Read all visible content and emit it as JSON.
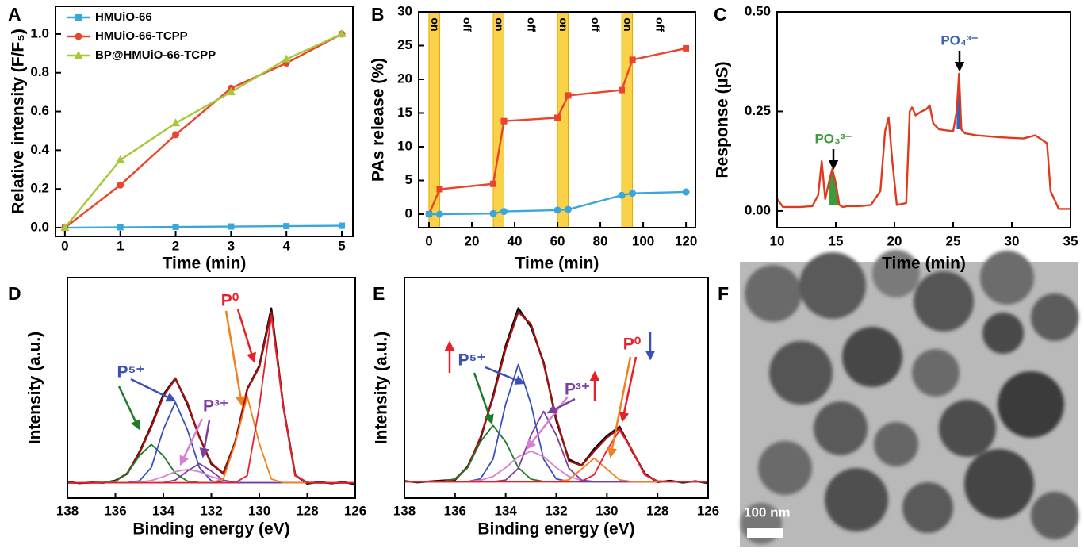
{
  "chart_data": [
    {
      "panel": "A",
      "type": "line",
      "xlabel": "Time (min)",
      "ylabel": "Relative intensity (F/F₅)",
      "x": [
        0,
        1,
        2,
        3,
        4,
        5
      ],
      "xlim": [
        -0.17,
        5.2
      ],
      "xticks": [
        0,
        1,
        2,
        3,
        4,
        5
      ],
      "ylim": [
        -0.045,
        1.143
      ],
      "yticks": [
        {
          "value": 0,
          "label": "0.0"
        },
        0.2,
        0.4,
        0.6,
        0.8,
        {
          "value": 1,
          "label": "1.0"
        }
      ],
      "series": [
        {
          "name": "HMUiO-66",
          "color": "#3aa7dc",
          "marker": "square",
          "values": [
            0,
            0.002,
            0.004,
            0.006,
            0.008,
            0.01
          ]
        },
        {
          "name": "HMUiO-66-TCPP",
          "color": "#e8452c",
          "marker": "circle",
          "values": [
            0,
            0.22,
            0.48,
            0.72,
            0.85,
            1.0
          ]
        },
        {
          "name": "BP@HMUiO-66-TCPP",
          "color": "#a6c93a",
          "marker": "triangle",
          "values": [
            0,
            0.35,
            0.54,
            0.7,
            0.87,
            1.0
          ]
        }
      ]
    },
    {
      "panel": "B",
      "type": "line",
      "xlabel": "Time (min)",
      "ylabel": "PAs release (%)",
      "x": [
        0,
        5,
        30,
        35,
        60,
        65,
        90,
        95,
        120
      ],
      "xlim": [
        -4.8,
        124.4
      ],
      "xticks": [
        0,
        20,
        40,
        60,
        80,
        100,
        120
      ],
      "ylim": [
        -2,
        30
      ],
      "yticks": [
        0,
        5,
        10,
        15,
        20,
        25,
        30
      ],
      "band_color": "#f9d24a",
      "intervals": [
        {
          "label": "on",
          "range": [
            0,
            5
          ],
          "shaded": true
        },
        {
          "label": "off",
          "range": [
            5,
            30
          ],
          "shaded": false
        },
        {
          "label": "on",
          "range": [
            30,
            35
          ],
          "shaded": true
        },
        {
          "label": "off",
          "range": [
            35,
            60
          ],
          "shaded": false
        },
        {
          "label": "on",
          "range": [
            60,
            65
          ],
          "shaded": true
        },
        {
          "label": "off",
          "range": [
            65,
            90
          ],
          "shaded": false
        },
        {
          "label": "on",
          "range": [
            90,
            95
          ],
          "shaded": true
        },
        {
          "label": "off",
          "range": [
            95,
            120
          ],
          "shaded": false
        }
      ],
      "series": [
        {
          "color": "#e8452c",
          "marker": "square",
          "values": [
            0,
            3.7,
            4.5,
            13.8,
            14.3,
            17.6,
            18.4,
            22.9,
            24.6
          ]
        },
        {
          "color": "#3aa7dc",
          "marker": "circle",
          "values": [
            0,
            0,
            0.1,
            0.4,
            0.6,
            0.7,
            2.8,
            3.1,
            3.3
          ]
        }
      ]
    },
    {
      "panel": "C",
      "type": "line",
      "xlabel": "Time (min)",
      "ylabel": "Response (μS)",
      "x": [
        10,
        10.5,
        11,
        12,
        13,
        13.5,
        13.8,
        14.1,
        14.4,
        14.7,
        15,
        15.3,
        15.6,
        16,
        17,
        18,
        18.8,
        19.2,
        19.5,
        19.8,
        20.2,
        21,
        21.3,
        21.5,
        21.8,
        22.3,
        22.7,
        23,
        23.3,
        23.8,
        25,
        25.3,
        25.5,
        25.7,
        26,
        27,
        29,
        31,
        32,
        32.5,
        33,
        33.3,
        34,
        35
      ],
      "xlim": [
        10,
        35
      ],
      "xticks": [
        10,
        15,
        20,
        25,
        30,
        35
      ],
      "ylim": [
        -0.042,
        0.5
      ],
      "yticks": [
        {
          "value": 0,
          "label": "0.00"
        },
        0.25,
        {
          "value": 0.5,
          "label": "0.50"
        }
      ],
      "series": [
        {
          "color": "#e03a1e",
          "values": [
            0.03,
            0.01,
            0.01,
            0.01,
            0.012,
            0.04,
            0.125,
            0.03,
            0.07,
            0.105,
            0.07,
            0.015,
            0.01,
            0.012,
            0.012,
            0.015,
            0.05,
            0.2,
            0.235,
            0.13,
            0.015,
            0.02,
            0.25,
            0.26,
            0.24,
            0.25,
            0.255,
            0.265,
            0.22,
            0.205,
            0.2,
            0.25,
            0.345,
            0.205,
            0.195,
            0.19,
            0.185,
            0.182,
            0.19,
            0.18,
            0.17,
            0.05,
            0.005,
            0.005
          ]
        }
      ],
      "peaks": [
        {
          "label": "PO₃³⁻",
          "color": "#3c9c3c",
          "x_range": [
            14.4,
            15.3
          ]
        },
        {
          "label": "PO₄³⁻",
          "color": "#3a5fb8",
          "x_range": [
            25.3,
            25.7
          ]
        }
      ]
    },
    {
      "panel": "D",
      "type": "line",
      "xlabel": "Binding energy (eV)",
      "ylabel": "Intensity (a.u.)",
      "x": [
        138,
        137.5,
        137,
        136.5,
        136,
        135.5,
        135,
        134.5,
        134,
        133.5,
        133,
        132.5,
        132,
        131.5,
        131,
        130.5,
        130,
        129.5,
        129,
        128.5,
        128,
        127.5,
        127,
        126.5,
        126
      ],
      "xlim": [
        138,
        126
      ],
      "xticks": [
        138,
        136,
        134,
        132,
        130,
        128,
        126
      ],
      "ylim": [
        -0.05,
        1.1
      ],
      "series": [
        {
          "color": "#000000",
          "values": [
            0.035,
            0.028,
            0.032,
            0.03,
            0.042,
            0.078,
            0.19,
            0.33,
            0.49,
            0.575,
            0.44,
            0.27,
            0.128,
            0.08,
            0.245,
            0.52,
            0.64,
            0.94,
            0.43,
            0.07,
            0.025,
            0.035,
            0.027,
            0.034,
            0.022
          ]
        },
        {
          "color": "#a01010",
          "values": [
            0.03,
            0.03,
            0.03,
            0.031,
            0.039,
            0.081,
            0.184,
            0.322,
            0.482,
            0.572,
            0.448,
            0.269,
            0.133,
            0.077,
            0.241,
            0.518,
            0.634,
            0.92,
            0.428,
            0.068,
            0.031,
            0.03,
            0.03,
            0.03,
            0.03
          ]
        },
        {
          "color": "#1e7b2a",
          "values": [
            0.03,
            0.03,
            0.03,
            0.031,
            0.039,
            0.08,
            0.171,
            0.23,
            0.171,
            0.08,
            0.039,
            0.031,
            0.03,
            0.03,
            0.03,
            0.03,
            0.03,
            0.03,
            0.03,
            0.03,
            0.03,
            0.03,
            0.03,
            0.03,
            0.03
          ]
        },
        {
          "color": "#3b4fb8",
          "values": [
            0.03,
            0.03,
            0.03,
            0.03,
            0.03,
            0.031,
            0.04,
            0.11,
            0.308,
            0.45,
            0.308,
            0.11,
            0.04,
            0.031,
            0.03,
            0.03,
            0.03,
            0.03,
            0.03,
            0.03,
            0.03,
            0.03,
            0.03,
            0.03,
            0.03
          ]
        },
        {
          "color": "#d97fd2",
          "values": [
            0.03,
            0.03,
            0.03,
            0.03,
            0.03,
            0.03,
            0.033,
            0.042,
            0.062,
            0.088,
            0.1,
            0.088,
            0.062,
            0.042,
            0.033,
            0.03,
            0.03,
            0.03,
            0.03,
            0.03,
            0.03,
            0.03,
            0.03,
            0.03,
            0.03
          ]
        },
        {
          "color": "#7b3fa0",
          "values": [
            0.03,
            0.03,
            0.03,
            0.03,
            0.03,
            0.03,
            0.03,
            0.03,
            0.031,
            0.044,
            0.091,
            0.13,
            0.091,
            0.044,
            0.031,
            0.03,
            0.03,
            0.03,
            0.03,
            0.03,
            0.03,
            0.03,
            0.03,
            0.03,
            0.03
          ]
        },
        {
          "color": "#f28020",
          "values": [
            0.03,
            0.03,
            0.03,
            0.03,
            0.03,
            0.03,
            0.03,
            0.03,
            0.03,
            0.03,
            0.03,
            0.03,
            0.03,
            0.05,
            0.236,
            0.48,
            0.236,
            0.05,
            0.03,
            0.03,
            0.03,
            0.03,
            0.03,
            0.03,
            0.03
          ]
        },
        {
          "color": "#e8202a",
          "values": [
            0.03,
            0.03,
            0.03,
            0.03,
            0.03,
            0.03,
            0.03,
            0.03,
            0.03,
            0.03,
            0.03,
            0.03,
            0.03,
            0.03,
            0.031,
            0.068,
            0.428,
            0.9,
            0.428,
            0.068,
            0.031,
            0.03,
            0.03,
            0.03,
            0.03
          ]
        }
      ],
      "annotations": [
        {
          "text": "P⁵⁺",
          "color": "#3b4fb8"
        },
        {
          "text": "P³⁺",
          "color": "#7b3fa0"
        },
        {
          "text": "P⁰",
          "color": "#e8202a"
        }
      ]
    },
    {
      "panel": "E",
      "type": "line",
      "xlabel": "Binding energy (eV)",
      "ylabel": "Intensity (a.u.)",
      "x": [
        138,
        137.5,
        137,
        136.5,
        136,
        135.5,
        135,
        134.5,
        134,
        133.5,
        133,
        132.5,
        132,
        131.5,
        131,
        130.5,
        130,
        129.5,
        129,
        128.5,
        128,
        127.5,
        127,
        126.5,
        126
      ],
      "xlim": [
        138,
        126
      ],
      "xticks": [
        138,
        136,
        134,
        132,
        130,
        128,
        126
      ],
      "ylim": [
        -0.04,
        0.9
      ],
      "series": [
        {
          "color": "#000000",
          "values": [
            0.033,
            0.027,
            0.031,
            0.035,
            0.038,
            0.095,
            0.21,
            0.395,
            0.61,
            0.77,
            0.69,
            0.54,
            0.29,
            0.125,
            0.1,
            0.17,
            0.225,
            0.265,
            0.16,
            0.065,
            0.028,
            0.034,
            0.026,
            0.032,
            0.024
          ]
        },
        {
          "color": "#a01010",
          "values": [
            0.03,
            0.03,
            0.03,
            0.031,
            0.041,
            0.092,
            0.218,
            0.388,
            0.598,
            0.754,
            0.701,
            0.534,
            0.301,
            0.118,
            0.099,
            0.161,
            0.218,
            0.258,
            0.164,
            0.06,
            0.032,
            0.03,
            0.03,
            0.03,
            0.03
          ]
        },
        {
          "color": "#1e7b2a",
          "values": [
            0.03,
            0.03,
            0.03,
            0.031,
            0.041,
            0.09,
            0.2,
            0.27,
            0.2,
            0.09,
            0.041,
            0.031,
            0.03,
            0.03,
            0.03,
            0.03,
            0.03,
            0.03,
            0.03,
            0.03,
            0.03,
            0.03,
            0.03,
            0.03,
            0.03
          ]
        },
        {
          "color": "#3b4fb8",
          "values": [
            0.03,
            0.03,
            0.03,
            0.03,
            0.03,
            0.031,
            0.042,
            0.126,
            0.361,
            0.53,
            0.361,
            0.126,
            0.042,
            0.031,
            0.03,
            0.03,
            0.03,
            0.03,
            0.03,
            0.03,
            0.03,
            0.03,
            0.03,
            0.03,
            0.03
          ]
        },
        {
          "color": "#d97fd2",
          "values": [
            0.03,
            0.03,
            0.03,
            0.03,
            0.03,
            0.031,
            0.036,
            0.052,
            0.09,
            0.137,
            0.16,
            0.137,
            0.09,
            0.052,
            0.036,
            0.031,
            0.03,
            0.03,
            0.03,
            0.03,
            0.03,
            0.03,
            0.03,
            0.03,
            0.03
          ]
        },
        {
          "color": "#7b3fa0",
          "values": [
            0.03,
            0.03,
            0.03,
            0.03,
            0.03,
            0.03,
            0.03,
            0.03,
            0.037,
            0.087,
            0.229,
            0.33,
            0.229,
            0.087,
            0.037,
            0.03,
            0.03,
            0.03,
            0.03,
            0.03,
            0.03,
            0.03,
            0.03,
            0.03,
            0.03
          ]
        },
        {
          "color": "#f28020",
          "values": [
            0.03,
            0.03,
            0.03,
            0.03,
            0.03,
            0.03,
            0.03,
            0.03,
            0.03,
            0.03,
            0.03,
            0.03,
            0.03,
            0.038,
            0.084,
            0.13,
            0.084,
            0.038,
            0.03,
            0.03,
            0.03,
            0.03,
            0.03,
            0.03,
            0.03
          ]
        },
        {
          "color": "#e8202a",
          "values": [
            0.03,
            0.03,
            0.03,
            0.03,
            0.03,
            0.03,
            0.03,
            0.03,
            0.03,
            0.03,
            0.03,
            0.03,
            0.03,
            0.03,
            0.032,
            0.06,
            0.164,
            0.25,
            0.164,
            0.06,
            0.032,
            0.03,
            0.03,
            0.03,
            0.03
          ]
        }
      ],
      "annotations": [
        {
          "text": "P⁵⁺",
          "color": "#3b4fb8"
        },
        {
          "text": "P³⁺",
          "color": "#7b3fa0"
        },
        {
          "text": "P⁰",
          "color": "#e8202a"
        }
      ]
    }
  ],
  "image": {
    "panel": "F",
    "scale_bar_label": "100 nm"
  }
}
